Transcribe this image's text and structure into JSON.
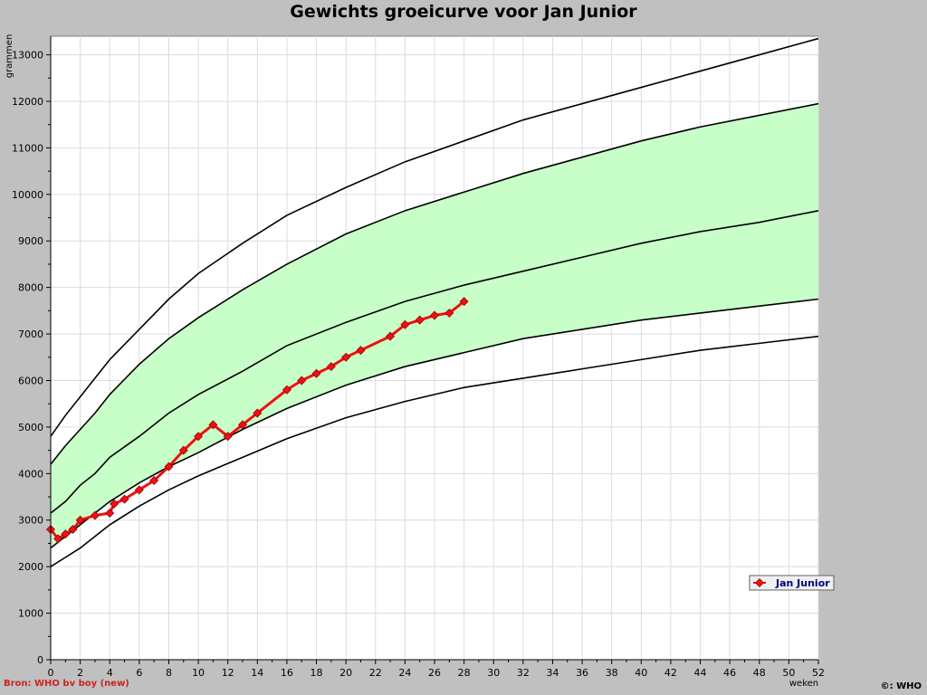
{
  "chart_data": {
    "type": "line",
    "title": "Gewichts groeicurve voor Jan Junior",
    "ylabel": "grammen",
    "xlabel": "weken",
    "xlim": [
      0,
      52
    ],
    "ylim": [
      0,
      13400
    ],
    "x_ticks": [
      0,
      2,
      4,
      6,
      8,
      10,
      12,
      14,
      16,
      18,
      20,
      22,
      24,
      26,
      28,
      30,
      32,
      34,
      36,
      38,
      40,
      42,
      44,
      46,
      48,
      50,
      52
    ],
    "y_ticks": [
      0,
      1000,
      2000,
      3000,
      4000,
      5000,
      6000,
      7000,
      8000,
      9000,
      10000,
      11000,
      12000,
      13000
    ],
    "grid": true,
    "reference_x": [
      0,
      1,
      2,
      3,
      4,
      6,
      8,
      10,
      13,
      16,
      20,
      24,
      28,
      32,
      36,
      40,
      44,
      48,
      52
    ],
    "reference_curves": [
      {
        "values": [
          2000,
          2200,
          2400,
          2650,
          2900,
          3300,
          3650,
          3950,
          4350,
          4750,
          5200,
          5550,
          5850,
          6050,
          6250,
          6450,
          6650,
          6800,
          6950
        ]
      },
      {
        "values": [
          2400,
          2650,
          2900,
          3150,
          3400,
          3800,
          4150,
          4450,
          4950,
          5400,
          5900,
          6300,
          6600,
          6900,
          7100,
          7300,
          7450,
          7600,
          7750
        ]
      },
      {
        "values": [
          3150,
          3400,
          3750,
          4000,
          4350,
          4800,
          5300,
          5700,
          6200,
          6750,
          7250,
          7700,
          8050,
          8350,
          8650,
          8950,
          9200,
          9400,
          9650
        ]
      },
      {
        "values": [
          4200,
          4600,
          4950,
          5300,
          5700,
          6350,
          6900,
          7350,
          7950,
          8500,
          9150,
          9650,
          10050,
          10450,
          10800,
          11150,
          11450,
          11700,
          11950
        ]
      },
      {
        "values": [
          4800,
          5250,
          5650,
          6050,
          6450,
          7100,
          7750,
          8300,
          8950,
          9550,
          10150,
          10700,
          11150,
          11600,
          11950,
          12300,
          12650,
          13000,
          13350
        ]
      }
    ],
    "shaded_band": {
      "between_curves": [
        1,
        3
      ],
      "color": "#c8ffc8"
    },
    "series": [
      {
        "name": "Jan Junior",
        "color": "#ee1111",
        "x": [
          0,
          0.5,
          1,
          1.5,
          2,
          3,
          4,
          4.3,
          5,
          6,
          7,
          8,
          9,
          10,
          11,
          12,
          13,
          14,
          16,
          17,
          18,
          19,
          20,
          21,
          23,
          24,
          25,
          26,
          27,
          28
        ],
        "values": [
          2800,
          2600,
          2700,
          2800,
          3000,
          3100,
          3150,
          3350,
          3450,
          3650,
          3850,
          4150,
          4500,
          4800,
          5050,
          4800,
          5050,
          5300,
          5800,
          6000,
          6150,
          6300,
          6500,
          6650,
          6950,
          7200,
          7300,
          7400,
          7450,
          7700
        ]
      }
    ],
    "legend_position": "right",
    "source_note": "Bron: WHO bv boy (new)",
    "credit": "©: WHO"
  }
}
